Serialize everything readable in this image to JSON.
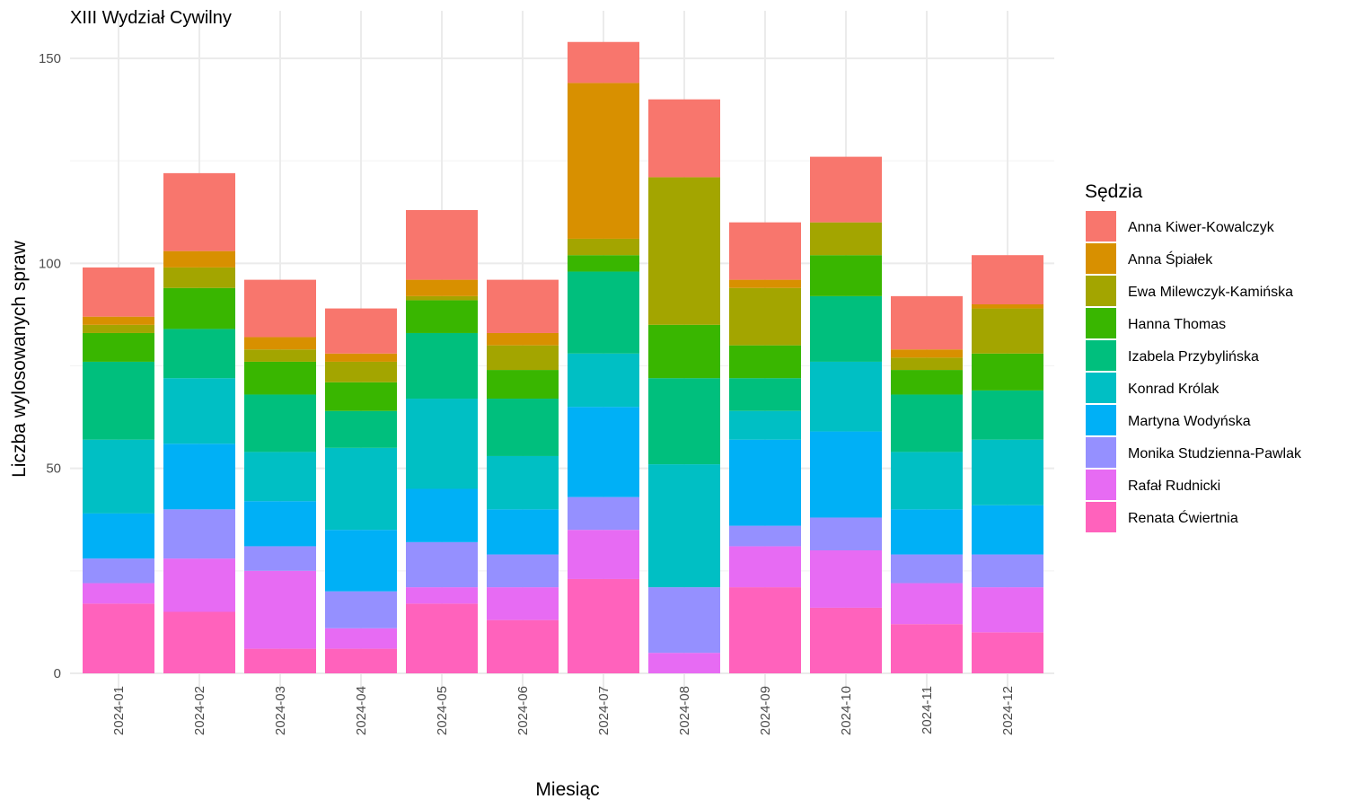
{
  "chart_data": {
    "type": "bar",
    "stacked": true,
    "title": "XIII Wydział Cywilny",
    "xlabel": "Miesiąc",
    "ylabel": "Liczba wylosowanych spraw",
    "ylim": [
      0,
      160
    ],
    "yticks": [
      0,
      50,
      100,
      150
    ],
    "grid": true,
    "legend_position": "right",
    "legend_title": "Sędzia",
    "categories": [
      "2024-01",
      "2024-02",
      "2024-03",
      "2024-04",
      "2024-05",
      "2024-06",
      "2024-07",
      "2024-08",
      "2024-09",
      "2024-10",
      "2024-11",
      "2024-12"
    ],
    "series": [
      {
        "name": "Anna Kiwer-Kowalczyk",
        "color": "#F8766D",
        "values": [
          12,
          19,
          14,
          11,
          17,
          13,
          10,
          19,
          14,
          16,
          13,
          12
        ]
      },
      {
        "name": "Anna Śpiałek",
        "color": "#D89000",
        "values": [
          2,
          4,
          3,
          2,
          4,
          3,
          38,
          0,
          2,
          0,
          2,
          1
        ]
      },
      {
        "name": "Ewa Milewczyk-Kamińska",
        "color": "#A3A500",
        "values": [
          2,
          5,
          3,
          5,
          1,
          6,
          4,
          36,
          14,
          8,
          3,
          11
        ]
      },
      {
        "name": "Hanna Thomas",
        "color": "#39B600",
        "values": [
          7,
          10,
          8,
          7,
          8,
          7,
          4,
          13,
          8,
          10,
          6,
          9
        ]
      },
      {
        "name": "Izabela Przybylińska",
        "color": "#00BF7D",
        "values": [
          19,
          12,
          14,
          9,
          16,
          14,
          20,
          21,
          8,
          16,
          14,
          12
        ]
      },
      {
        "name": "Konrad Królak",
        "color": "#00BFC4",
        "values": [
          18,
          16,
          12,
          20,
          22,
          13,
          13,
          30,
          7,
          17,
          14,
          16
        ]
      },
      {
        "name": "Martyna Wodyńska",
        "color": "#00B0F6",
        "values": [
          11,
          16,
          11,
          15,
          13,
          11,
          22,
          0,
          21,
          21,
          11,
          12
        ]
      },
      {
        "name": "Monika Studzienna-Pawlak",
        "color": "#9590FF",
        "values": [
          6,
          12,
          6,
          9,
          11,
          8,
          8,
          16,
          5,
          8,
          7,
          8
        ]
      },
      {
        "name": "Rafał Rudnicki",
        "color": "#E76BF3",
        "values": [
          5,
          13,
          19,
          5,
          4,
          8,
          12,
          5,
          10,
          14,
          10,
          11
        ]
      },
      {
        "name": "Renata Ćwiertnia",
        "color": "#FF62BC",
        "values": [
          17,
          15,
          6,
          6,
          17,
          13,
          23,
          0,
          21,
          16,
          12,
          10
        ]
      }
    ]
  }
}
